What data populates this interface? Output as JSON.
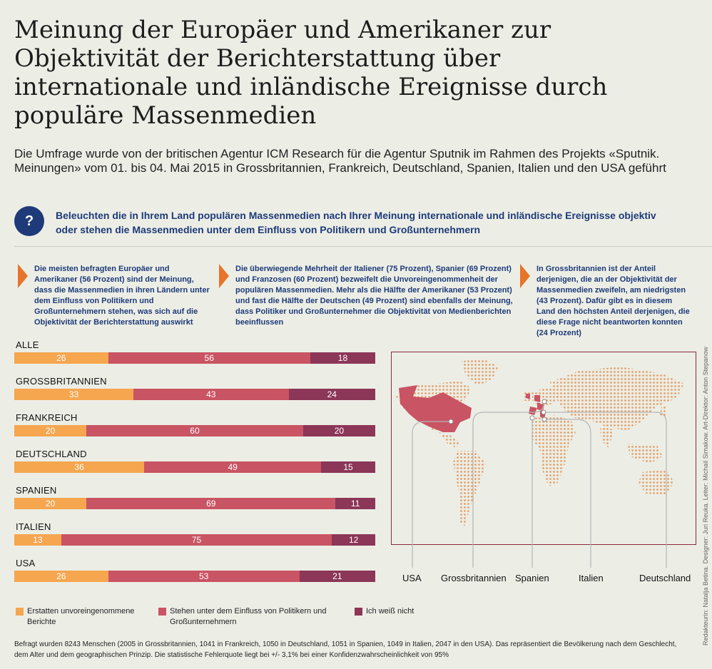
{
  "title": "Meinung der Europäer und Amerikaner zur Objektivität der Berichterstattung über internationale und inländische Ereignisse durch populäre Massenmedien",
  "subtitle": "Die Umfrage wurde von der britischen Agentur ICM Research für die Agentur Sputnik im Rahmen des Projekts «Sputnik. Meinungen» vom 01. bis 04. Mai 2015 in Grossbritannien, Frankreich, Deutschland, Spanien, Italien und den USA geführt",
  "question_icon": "?",
  "question": "Beleuchten die in Ihrem Land populären Massenmedien nach Ihrer Meinung internationale und inländische Ereignisse objektiv oder stehen die Massenmedien unter dem Einfluss von Politikern und Großunternehmern",
  "notes": [
    "Die meisten befragten Europäer und Amerikaner (56 Prozent) sind der Meinung, dass die Massenmedien in ihren Ländern unter dem Einfluss von Politikern und Großunternehmern stehen, was sich auf die Objektivität der Berichterstattung auswirkt",
    "Die überwiegende Mehrheit der Italiener (75 Prozent), Spanier (69 Prozent) und Franzosen (60 Prozent) bezweifelt die Unvoreingenommenheit der populären Massenmedien. Mehr als die Hälfte der Amerikaner (53 Prozent) und fast die Hälfte der Deutschen (49 Prozent) sind ebenfalls der Meinung, dass Politiker und Großunternehmer die Objektivität von Medienberichten beeinflussen",
    "In Grossbritannien ist der Anteil derjenigen, die an der Objektivität der Massenmedien zweifeln, am niedrigsten (43 Prozent). Dafür gibt es in diesem Land den höchsten Anteil derjenigen, die diese Frage nicht beantworten konnten (24 Prozent)"
  ],
  "colors": {
    "unbiased": "#f5a64f",
    "influenced": "#c95463",
    "dontknow": "#8c3658",
    "accent": "#e8742a",
    "navy": "#1e3a78"
  },
  "chart_data": {
    "type": "bar",
    "orientation": "horizontal-stacked",
    "categories": [
      "ALLE",
      "GROSSBRITANNIEN",
      "FRANKREICH",
      "DEUTSCHLAND",
      "SPANIEN",
      "ITALIEN",
      "USA"
    ],
    "series": [
      {
        "name": "Erstatten unvoreingenommene Berichte",
        "values": [
          26,
          33,
          20,
          36,
          20,
          13,
          26
        ]
      },
      {
        "name": "Stehen unter dem Einfluss von Politikern und Großunternehmern",
        "values": [
          56,
          43,
          60,
          49,
          69,
          75,
          53
        ]
      },
      {
        "name": "Ich weiß nicht",
        "values": [
          18,
          24,
          20,
          15,
          11,
          12,
          21
        ]
      }
    ],
    "xlim": [
      0,
      100
    ],
    "legend_position": "bottom"
  },
  "map_labels": [
    "USA",
    "Grossbritannien",
    "Spanien",
    "Italien",
    "Deutschland"
  ],
  "footer": "Befragt wurden 8243 Menschen (2005 in Grossbritannien, 1041 in Frankreich, 1050 in Deutschland, 1051 in Spanien, 1049 in Italien, 2047 in den USA). Das repräsentiert die Bevölkerung nach dem Geschlecht, dem Alter und dem geographischen Prinzip. Die statistische Fehlerquote liegt bei +/- 3,1% bei einer Konfidenzwahrscheinlichkeit von 95%",
  "credits": "Redakteurin: Natalja Betina. Designer: Juri Reuka. Leiter: Michail Simakow. Art-Direktor: Anton Stepanow"
}
